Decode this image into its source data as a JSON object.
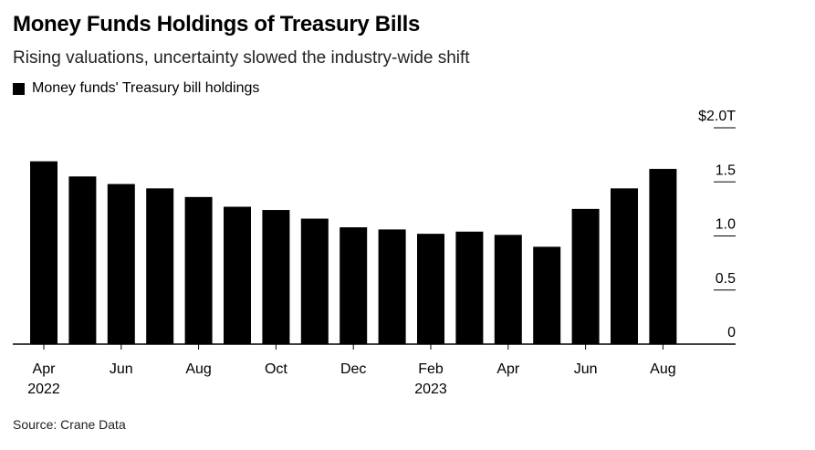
{
  "header": {
    "title": "Money Funds Holdings of Treasury Bills",
    "subtitle": "Rising valuations, uncertainty slowed the industry-wide shift"
  },
  "legend": {
    "label": "Money funds' Treasury bill holdings",
    "color": "#000000"
  },
  "source": "Source: Crane Data",
  "chart_data": {
    "type": "bar",
    "title": "Money Funds Holdings of Treasury Bills",
    "subtitle": "Rising valuations, uncertainty slowed the industry-wide shift",
    "categories": [
      "Apr 2022",
      "May 2022",
      "Jun 2022",
      "Jul 2022",
      "Aug 2022",
      "Sep 2022",
      "Oct 2022",
      "Nov 2022",
      "Dec 2022",
      "Jan 2023",
      "Feb 2023",
      "Mar 2023",
      "Apr 2023",
      "May 2023",
      "Jun 2023",
      "Jul 2023",
      "Aug 2023"
    ],
    "series": [
      {
        "name": "Money funds' Treasury bill holdings",
        "values": [
          1.69,
          1.55,
          1.48,
          1.44,
          1.36,
          1.27,
          1.24,
          1.16,
          1.08,
          1.06,
          1.02,
          1.04,
          1.01,
          0.9,
          1.25,
          1.44,
          1.62
        ]
      }
    ],
    "ylim": [
      0,
      2.0
    ],
    "yticks": [
      {
        "value": 2.0,
        "label": "$2.0T"
      },
      {
        "value": 1.5,
        "label": "1.5"
      },
      {
        "value": 1.0,
        "label": "1.0"
      },
      {
        "value": 0.5,
        "label": "0.5"
      },
      {
        "value": 0,
        "label": "0"
      }
    ],
    "xticks": [
      {
        "index": 0,
        "label": "Apr",
        "sublabel": "2022"
      },
      {
        "index": 2,
        "label": "Jun",
        "sublabel": ""
      },
      {
        "index": 4,
        "label": "Aug",
        "sublabel": ""
      },
      {
        "index": 6,
        "label": "Oct",
        "sublabel": ""
      },
      {
        "index": 8,
        "label": "Dec",
        "sublabel": ""
      },
      {
        "index": 10,
        "label": "Feb",
        "sublabel": "2023"
      },
      {
        "index": 12,
        "label": "Apr",
        "sublabel": ""
      },
      {
        "index": 14,
        "label": "Jun",
        "sublabel": ""
      },
      {
        "index": 16,
        "label": "Aug",
        "sublabel": ""
      }
    ],
    "yaxis_side": "right",
    "grid": false,
    "legend_position": "top-left",
    "bar_color": "#000000"
  }
}
